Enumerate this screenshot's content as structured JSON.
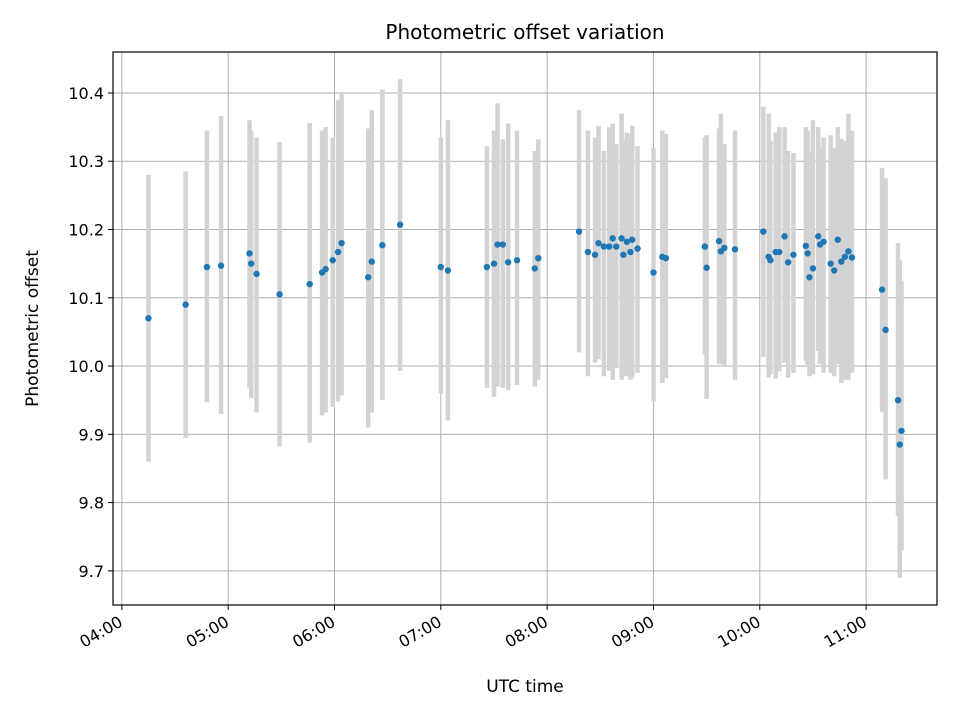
{
  "chart_data": {
    "type": "scatter",
    "title": "Photometric offset variation",
    "xlabel": "UTC time",
    "ylabel": "Photometric offset",
    "x_axis": "time",
    "xlim": [
      "03:55",
      "11:40"
    ],
    "ylim": [
      9.65,
      10.46
    ],
    "x_ticks": [
      "04:00",
      "05:00",
      "06:00",
      "07:00",
      "08:00",
      "09:00",
      "10:00",
      "11:00"
    ],
    "y_ticks": [
      "9.7",
      "9.8",
      "9.9",
      "10.0",
      "10.1",
      "10.2",
      "10.3",
      "10.4"
    ],
    "grid": true,
    "point_color": "#1f77b4",
    "errorbar_color": "#d3d3d3",
    "series": [
      {
        "x": [
          "04:15",
          "04:36",
          "04:48",
          "04:56",
          "05:12",
          "05:13",
          "05:16",
          "05:29",
          "05:46",
          "05:53",
          "05:55",
          "05:59",
          "06:02",
          "06:04",
          "06:19",
          "06:21",
          "06:27",
          "06:37",
          "07:00",
          "07:04",
          "07:26",
          "07:30",
          "07:32",
          "07:35",
          "07:38",
          "07:43",
          "07:53",
          "07:55",
          "08:18",
          "08:23",
          "08:27",
          "08:29",
          "08:32",
          "08:35",
          "08:37",
          "08:39",
          "08:42",
          "08:43",
          "08:45",
          "08:47",
          "08:48",
          "08:51",
          "09:00",
          "09:05",
          "09:07",
          "09:29",
          "09:30",
          "09:37",
          "09:38",
          "09:40",
          "09:46",
          "10:02",
          "10:05",
          "10:06",
          "10:09",
          "10:11",
          "10:14",
          "10:16",
          "10:19",
          "10:26",
          "10:27",
          "10:28",
          "10:30",
          "10:33",
          "10:34",
          "10:36",
          "10:40",
          "10:42",
          "10:44",
          "10:46",
          "10:48",
          "10:50",
          "10:52",
          "11:09",
          "11:11",
          "11:18",
          "11:19",
          "11:20"
        ],
        "y": [
          10.07,
          10.09,
          10.145,
          10.147,
          10.165,
          10.15,
          10.135,
          10.105,
          10.12,
          10.137,
          10.142,
          10.155,
          10.167,
          10.18,
          10.13,
          10.153,
          10.177,
          10.207,
          10.145,
          10.14,
          10.145,
          10.15,
          10.178,
          10.178,
          10.152,
          10.155,
          10.143,
          10.158,
          10.197,
          10.167,
          10.163,
          10.18,
          10.175,
          10.175,
          10.187,
          10.175,
          10.187,
          10.163,
          10.182,
          10.167,
          10.185,
          10.172,
          10.137,
          10.16,
          10.158,
          10.175,
          10.144,
          10.183,
          10.168,
          10.173,
          10.171,
          10.197,
          10.16,
          10.155,
          10.167,
          10.167,
          10.19,
          10.152,
          10.163,
          10.176,
          10.165,
          10.13,
          10.143,
          10.19,
          10.178,
          10.182,
          10.15,
          10.14,
          10.185,
          10.153,
          10.16,
          10.168,
          10.159,
          10.112,
          10.053,
          9.95,
          9.885,
          9.905
        ],
        "err_low": [
          9.86,
          9.895,
          9.947,
          9.93,
          9.968,
          9.953,
          9.932,
          9.882,
          9.888,
          9.928,
          9.932,
          9.94,
          9.948,
          9.957,
          9.91,
          9.932,
          9.95,
          9.993,
          9.96,
          9.92,
          9.968,
          9.955,
          9.97,
          9.968,
          9.965,
          9.972,
          9.97,
          9.98,
          10.02,
          9.985,
          10.005,
          10.01,
          9.985,
          9.993,
          9.98,
          9.997,
          9.98,
          9.985,
          9.985,
          9.98,
          9.983,
          9.99,
          9.948,
          9.975,
          9.982,
          10.017,
          9.952,
          10.003,
          10.003,
          10.0,
          9.98,
          10.013,
          9.983,
          9.988,
          9.982,
          9.992,
          10.005,
          9.983,
          9.99,
          10.008,
          10.0,
          9.985,
          9.988,
          10.022,
          10.003,
          9.99,
          9.99,
          9.985,
          10.003,
          9.975,
          9.98,
          9.98,
          9.99,
          9.933,
          9.834,
          9.78,
          9.69,
          9.73
        ],
        "err_high": [
          10.28,
          10.285,
          10.345,
          10.366,
          10.36,
          10.345,
          10.335,
          10.328,
          10.356,
          10.345,
          10.35,
          10.335,
          10.39,
          10.4,
          10.348,
          10.375,
          10.405,
          10.42,
          10.335,
          10.36,
          10.322,
          10.345,
          10.385,
          10.332,
          10.355,
          10.345,
          10.315,
          10.332,
          10.375,
          10.345,
          10.335,
          10.352,
          10.315,
          10.35,
          10.355,
          10.325,
          10.37,
          10.332,
          10.342,
          10.34,
          10.352,
          10.322,
          10.32,
          10.345,
          10.34,
          10.335,
          10.338,
          10.348,
          10.37,
          10.325,
          10.345,
          10.38,
          10.37,
          10.33,
          10.342,
          10.35,
          10.35,
          10.315,
          10.312,
          10.35,
          10.345,
          10.315,
          10.36,
          10.35,
          10.32,
          10.335,
          10.338,
          10.32,
          10.35,
          10.333,
          10.33,
          10.37,
          10.345,
          10.29,
          10.275,
          10.18,
          10.155,
          10.125
        ]
      }
    ]
  }
}
